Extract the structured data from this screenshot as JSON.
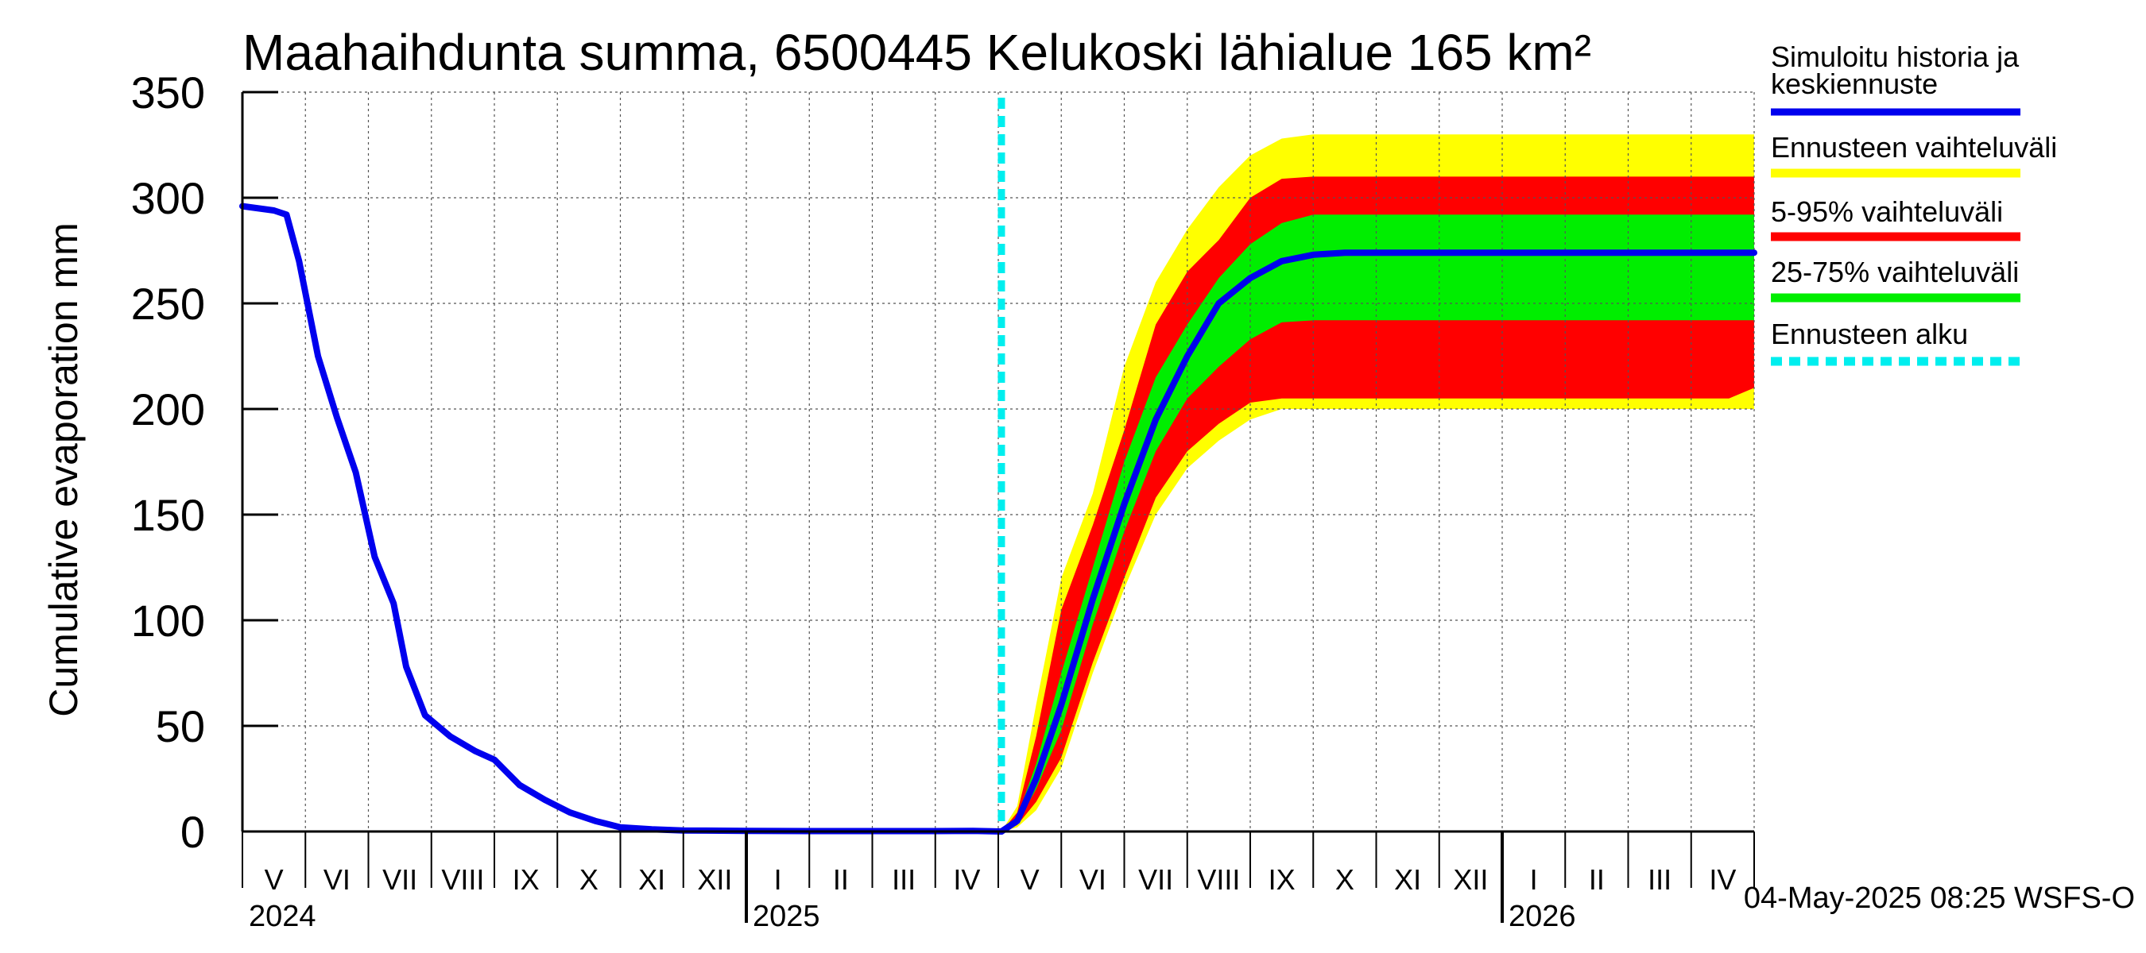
{
  "chart_data": {
    "type": "area",
    "title": "Maahaihdunta summa, 6500445 Kelukoski lähialue 165 km²",
    "ylabel": "Cumulative evaporation   mm",
    "xlabel": "",
    "ylim": [
      0,
      350
    ],
    "yticks": [
      0,
      50,
      100,
      150,
      200,
      250,
      300,
      350
    ],
    "month_labels": [
      "V",
      "VI",
      "VII",
      "VIII",
      "IX",
      "X",
      "XI",
      "XII",
      "I",
      "II",
      "III",
      "IV",
      "V",
      "VI",
      "VII",
      "VIII",
      "IX",
      "X",
      "XI",
      "XII",
      "I",
      "II",
      "III",
      "IV"
    ],
    "year_labels": [
      "2024",
      "2025",
      "2026"
    ],
    "forecast_start_month": 12.05,
    "legend": [
      {
        "label_line1": "Simuloitu historia ja",
        "label_line2": "keskiennuste",
        "color": "#0000ee",
        "style": "line"
      },
      {
        "label_line1": "Ennusteen vaihteluväli",
        "label_line2": "",
        "color": "#ffff00",
        "style": "band"
      },
      {
        "label_line1": "5-95% vaihteluväli",
        "label_line2": "",
        "color": "#ff0000",
        "style": "band"
      },
      {
        "label_line1": "25-75% vaihteluväli",
        "label_line2": "",
        "color": "#00ee00",
        "style": "band"
      },
      {
        "label_line1": "Ennusteen alku",
        "label_line2": "",
        "color": "#00eeee",
        "style": "dashed"
      }
    ],
    "history_series": {
      "name": "Simuloitu historia",
      "x": [
        0,
        0.5,
        0.7,
        0.9,
        1.2,
        1.5,
        1.8,
        2.1,
        2.4,
        2.6,
        2.9,
        3.3,
        3.7,
        4.0,
        4.4,
        4.8,
        5.2,
        5.6,
        6.0,
        6.5,
        7.0,
        8.0,
        9.0,
        10.0,
        11.0,
        11.6,
        12.05
      ],
      "values": [
        296,
        294,
        292,
        270,
        225,
        196,
        170,
        130,
        108,
        78,
        55,
        45,
        38,
        34,
        22,
        15,
        9,
        5,
        2,
        1,
        0.5,
        0.3,
        0.2,
        0.2,
        0.2,
        0.3,
        0
      ]
    },
    "forecast": {
      "x": [
        12.05,
        12.3,
        12.6,
        13.0,
        13.5,
        14.0,
        14.5,
        15.0,
        15.5,
        16.0,
        16.5,
        17.0,
        17.5,
        18.0,
        19.0,
        20.0,
        22.0,
        23.6,
        24.0
      ],
      "median": [
        0,
        5,
        25,
        60,
        110,
        155,
        195,
        225,
        250,
        262,
        270,
        273,
        274,
        274,
        274,
        274,
        274,
        274,
        274
      ],
      "p25": [
        0,
        4,
        20,
        48,
        98,
        142,
        180,
        205,
        220,
        233,
        241,
        242,
        242,
        242,
        242,
        242,
        242,
        242,
        242
      ],
      "p75": [
        0,
        7,
        32,
        75,
        125,
        175,
        215,
        240,
        262,
        278,
        288,
        292,
        292,
        292,
        292,
        292,
        292,
        292,
        292
      ],
      "p05": [
        0,
        3,
        14,
        35,
        80,
        120,
        158,
        180,
        193,
        203,
        205,
        205,
        205,
        205,
        205,
        205,
        205,
        205,
        210
      ],
      "p95": [
        0,
        9,
        45,
        105,
        145,
        190,
        240,
        265,
        280,
        300,
        309,
        310,
        310,
        310,
        310,
        310,
        310,
        310,
        310
      ],
      "min": [
        0,
        2,
        10,
        30,
        75,
        115,
        150,
        172,
        185,
        195,
        200,
        200,
        200,
        200,
        200,
        200,
        200,
        200,
        200
      ],
      "max": [
        0,
        12,
        60,
        120,
        160,
        220,
        260,
        285,
        305,
        320,
        328,
        330,
        330,
        330,
        330,
        330,
        330,
        330,
        330
      ]
    },
    "footer": "04-May-2025 08:25 WSFS-O"
  }
}
